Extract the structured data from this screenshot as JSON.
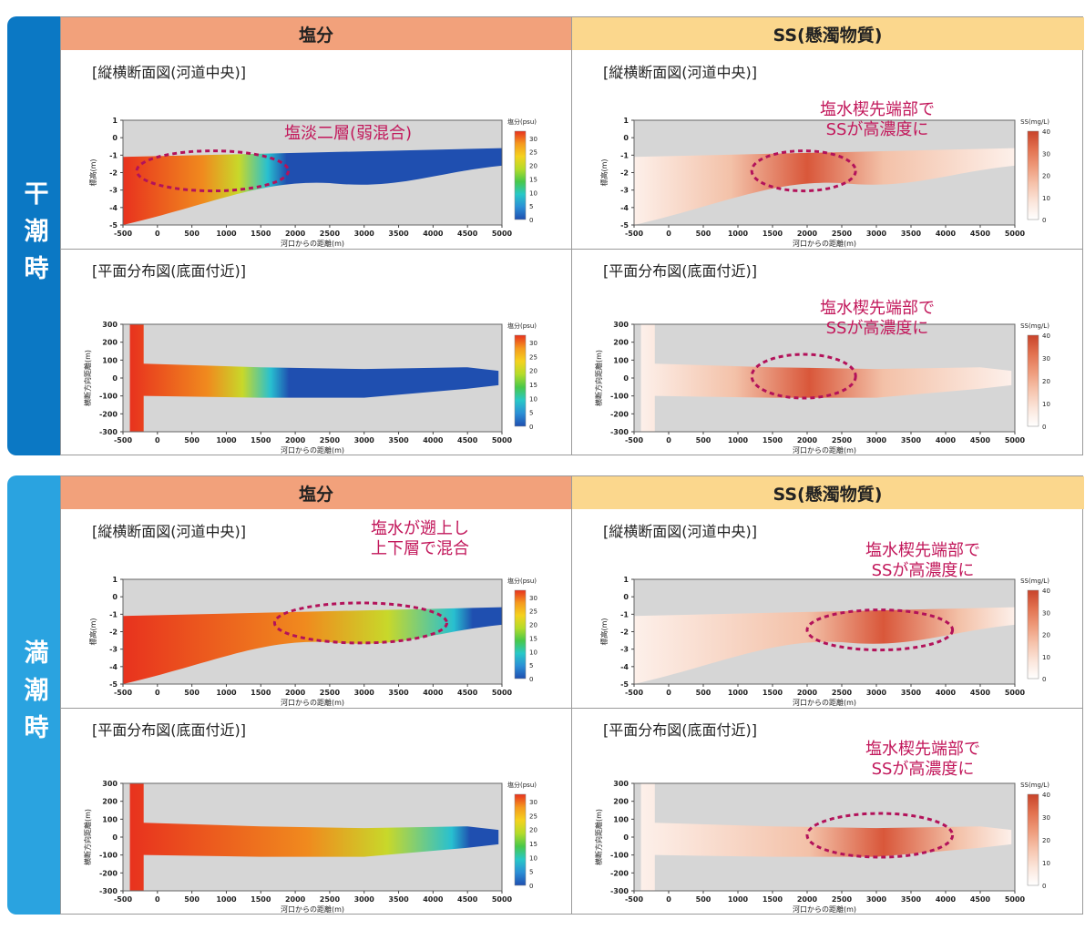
{
  "column_headers": {
    "salinity": "塩分",
    "ss": "SS(懸濁物質)"
  },
  "panel_titles": {
    "longitudinal": "[縦横断面図(河道中央)]",
    "plan": "[平面分布図(底面付近)]"
  },
  "sections": [
    {
      "id": "ebb",
      "label": "干潮時"
    },
    {
      "id": "flood",
      "label": "満潮時"
    }
  ],
  "annotations": {
    "ebb_salt_long": [
      "塩淡二層(弱混合)"
    ],
    "ebb_ss_long": [
      "塩水楔先端部で",
      "SSが高濃度に"
    ],
    "ebb_ss_plan": [
      "塩水楔先端部で",
      "SSが高濃度に"
    ],
    "flood_salt_long": [
      "塩水が遡上し",
      "上下層で混合"
    ],
    "flood_ss_long": [
      "塩水楔先端部で",
      "SSが高濃度に"
    ],
    "flood_ss_plan": [
      "塩水楔先端部で",
      "SSが高濃度に"
    ]
  },
  "colors": {
    "salt_high": "#e8321e",
    "salt_low": "#1f4fb0",
    "ss_high": "#c8432a",
    "ss_low": "#fdf2ee",
    "highlight": "#b3125a",
    "land": "#d6d6d6"
  },
  "chart_data": [
    {
      "id": "ebb_salt_long",
      "type": "heatmap",
      "view": "longitudinal",
      "xlabel": "河口からの距離(m)",
      "ylabel": "標高(m)",
      "x_ticks": [
        -500,
        0,
        500,
        1000,
        1500,
        2000,
        2500,
        3000,
        3500,
        4000,
        4500,
        5000
      ],
      "y_ticks": [
        1,
        0,
        -1,
        -2,
        -3,
        -4,
        -5
      ],
      "xlim": [
        -500,
        5000
      ],
      "ylim": [
        -5,
        1
      ],
      "colorbar": {
        "label": "塩分(psu)",
        "ticks": [
          30,
          25,
          20,
          15,
          10,
          5,
          0
        ]
      },
      "wedge_tip_m": 1600,
      "highlight_range_m": [
        -300,
        1900
      ]
    },
    {
      "id": "ebb_ss_long",
      "type": "heatmap",
      "view": "longitudinal",
      "xlabel": "河口からの距離(m)",
      "ylabel": "標高(m)",
      "x_ticks": [
        -500,
        0,
        500,
        1000,
        1500,
        2000,
        2500,
        3000,
        3500,
        4000,
        4500,
        5000
      ],
      "y_ticks": [
        1,
        0,
        -1,
        -2,
        -3,
        -4,
        -5
      ],
      "xlim": [
        -500,
        5000
      ],
      "ylim": [
        -5,
        1
      ],
      "colorbar": {
        "label": "SS(mg/L)",
        "ticks": [
          40,
          30,
          20,
          10,
          0
        ]
      },
      "peak_center_m": 2000,
      "highlight_range_m": [
        1200,
        2700
      ]
    },
    {
      "id": "ebb_salt_plan",
      "type": "heatmap",
      "view": "plan",
      "xlabel": "河口からの距離(m)",
      "ylabel": "横断方向距離(m)",
      "x_ticks": [
        -500,
        0,
        500,
        1000,
        1500,
        2000,
        2500,
        3000,
        3500,
        4000,
        4500,
        5000
      ],
      "y_ticks": [
        300,
        200,
        100,
        0,
        -100,
        -200,
        -300
      ],
      "xlim": [
        -500,
        5000
      ],
      "ylim": [
        -300,
        300
      ],
      "colorbar": {
        "label": "塩分(psu)",
        "ticks": [
          30,
          25,
          20,
          15,
          10,
          5,
          0
        ]
      },
      "wedge_tip_m": 1600
    },
    {
      "id": "ebb_ss_plan",
      "type": "heatmap",
      "view": "plan",
      "xlabel": "河口からの距離(m)",
      "ylabel": "横断方向距離(m)",
      "x_ticks": [
        -500,
        0,
        500,
        1000,
        1500,
        2000,
        2500,
        3000,
        3500,
        4000,
        4500,
        5000
      ],
      "y_ticks": [
        300,
        200,
        100,
        0,
        -100,
        -200,
        -300
      ],
      "xlim": [
        -500,
        5000
      ],
      "ylim": [
        -300,
        300
      ],
      "colorbar": {
        "label": "SS(mg/L)",
        "ticks": [
          40,
          30,
          20,
          10,
          0
        ]
      },
      "peak_center_m": 2000,
      "highlight_range_m": [
        1200,
        2700
      ]
    },
    {
      "id": "flood_salt_long",
      "type": "heatmap",
      "view": "longitudinal",
      "xlabel": "河口からの距離(m)",
      "ylabel": "標高(m)",
      "x_ticks": [
        -500,
        0,
        500,
        1000,
        1500,
        2000,
        2500,
        3000,
        3500,
        4000,
        4500,
        5000
      ],
      "y_ticks": [
        1,
        0,
        -1,
        -2,
        -3,
        -4,
        -5
      ],
      "xlim": [
        -500,
        5000
      ],
      "ylim": [
        -5,
        1
      ],
      "colorbar": {
        "label": "塩分(psu)",
        "ticks": [
          30,
          25,
          20,
          15,
          10,
          5,
          0
        ]
      },
      "wedge_tip_m": 4300,
      "highlight_range_m": [
        1700,
        4200
      ]
    },
    {
      "id": "flood_ss_long",
      "type": "heatmap",
      "view": "longitudinal",
      "xlabel": "河口からの距離(m)",
      "ylabel": "標高(m)",
      "x_ticks": [
        -500,
        0,
        500,
        1000,
        1500,
        2000,
        2500,
        3000,
        3500,
        4000,
        4500,
        5000
      ],
      "y_ticks": [
        1,
        0,
        -1,
        -2,
        -3,
        -4,
        -5
      ],
      "xlim": [
        -500,
        5000
      ],
      "ylim": [
        -5,
        1
      ],
      "colorbar": {
        "label": "SS(mg/L)",
        "ticks": [
          40,
          30,
          20,
          10,
          0
        ]
      },
      "peak_center_m": 3100,
      "highlight_range_m": [
        2000,
        4100
      ]
    },
    {
      "id": "flood_salt_plan",
      "type": "heatmap",
      "view": "plan",
      "xlabel": "河口からの距離(m)",
      "ylabel": "横断方向距離(m)",
      "x_ticks": [
        -500,
        0,
        500,
        1000,
        1500,
        2000,
        2500,
        3000,
        3500,
        4000,
        4500,
        5000
      ],
      "y_ticks": [
        300,
        200,
        100,
        0,
        -100,
        -200,
        -300
      ],
      "xlim": [
        -500,
        5000
      ],
      "ylim": [
        -300,
        300
      ],
      "colorbar": {
        "label": "塩分(psu)",
        "ticks": [
          30,
          25,
          20,
          15,
          10,
          5,
          0
        ]
      },
      "wedge_tip_m": 4300
    },
    {
      "id": "flood_ss_plan",
      "type": "heatmap",
      "view": "plan",
      "xlabel": "河口からの距離(m)",
      "ylabel": "横断方向距離(m)",
      "x_ticks": [
        -500,
        0,
        500,
        1000,
        1500,
        2000,
        2500,
        3000,
        3500,
        4000,
        4500,
        5000
      ],
      "y_ticks": [
        300,
        200,
        100,
        0,
        -100,
        -200,
        -300
      ],
      "xlim": [
        -500,
        5000
      ],
      "ylim": [
        -300,
        300
      ],
      "colorbar": {
        "label": "SS(mg/L)",
        "ticks": [
          40,
          30,
          20,
          10,
          0
        ]
      },
      "peak_center_m": 3100,
      "highlight_range_m": [
        2000,
        4100
      ]
    }
  ]
}
